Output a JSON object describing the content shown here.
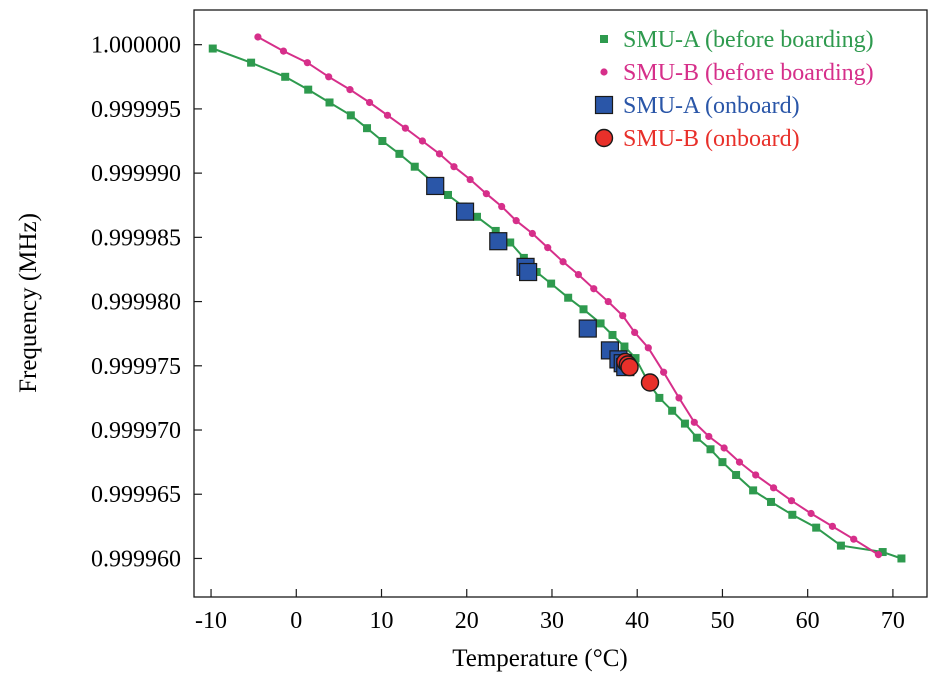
{
  "chart_data": {
    "type": "scatter",
    "xlabel": "Temperature (°C)",
    "ylabel": "Frequency (MHz)",
    "xlim": [
      -12,
      74
    ],
    "ylim": [
      0.999957,
      1.0000027
    ],
    "grid": false,
    "legend_position": "top-right",
    "x_ticks": [
      -10,
      0,
      10,
      20,
      30,
      40,
      50,
      60,
      70
    ],
    "x_tick_labels": [
      "-10",
      "0",
      "10",
      "20",
      "30",
      "40",
      "50",
      "60",
      "70"
    ],
    "y_ticks": [
      0.99996,
      0.999965,
      0.99997,
      0.999975,
      0.99998,
      0.999985,
      0.99999,
      0.999995,
      1.0
    ],
    "y_tick_labels": [
      "0.999960",
      "0.999965",
      "0.999970",
      "0.999975",
      "0.999980",
      "0.999985",
      "0.999990",
      "0.999995",
      "1.000000"
    ],
    "series": [
      {
        "name": "SMU-A (before boarding)",
        "marker": "square-small",
        "color": "#2e9a4e",
        "line": true,
        "x": [
          -9.8,
          -5.3,
          -1.3,
          1.4,
          3.9,
          6.4,
          8.3,
          10.1,
          12.1,
          13.9,
          16.0,
          17.8,
          19.6,
          21.2,
          23.4,
          25.1,
          26.7,
          28.2,
          29.9,
          31.9,
          33.7,
          35.7,
          37.1,
          38.5,
          39.8,
          41.4,
          42.6,
          44.1,
          45.6,
          47.0,
          48.6,
          50.0,
          51.6,
          53.6,
          55.7,
          58.2,
          61.0,
          63.9,
          68.8,
          71.0
        ],
        "y": [
          0.9999997,
          0.9999986,
          0.9999975,
          0.9999965,
          0.9999955,
          0.9999945,
          0.9999935,
          0.9999925,
          0.9999915,
          0.9999905,
          0.9999893,
          0.9999883,
          0.9999874,
          0.9999866,
          0.9999855,
          0.9999846,
          0.9999834,
          0.9999823,
          0.9999814,
          0.9999803,
          0.9999794,
          0.9999783,
          0.9999774,
          0.9999765,
          0.9999756,
          0.9999736,
          0.9999725,
          0.9999715,
          0.9999705,
          0.9999694,
          0.9999685,
          0.9999675,
          0.9999665,
          0.9999653,
          0.9999644,
          0.9999634,
          0.9999624,
          0.999961,
          0.9999605,
          0.99996
        ]
      },
      {
        "name": "SMU-B (before boarding)",
        "marker": "circle-small",
        "color": "#d62f8a",
        "line": true,
        "x": [
          -4.5,
          -1.5,
          1.3,
          3.8,
          6.3,
          8.6,
          10.7,
          12.8,
          14.8,
          16.8,
          18.5,
          20.4,
          22.3,
          24.1,
          25.8,
          27.7,
          29.5,
          31.3,
          33.1,
          34.9,
          36.6,
          38.3,
          39.7,
          41.3,
          43.1,
          44.9,
          46.7,
          48.4,
          50.2,
          52.0,
          53.9,
          56.0,
          58.1,
          60.4,
          62.9,
          65.4,
          68.3
        ],
        "y": [
          1.0000006,
          0.9999995,
          0.9999986,
          0.9999975,
          0.9999965,
          0.9999955,
          0.9999945,
          0.9999935,
          0.9999925,
          0.9999915,
          0.9999905,
          0.9999895,
          0.9999884,
          0.9999874,
          0.9999863,
          0.9999853,
          0.9999842,
          0.9999831,
          0.9999821,
          0.999981,
          0.99998,
          0.9999789,
          0.9999776,
          0.9999764,
          0.9999745,
          0.9999725,
          0.9999706,
          0.9999695,
          0.9999686,
          0.9999675,
          0.9999665,
          0.9999655,
          0.9999645,
          0.9999635,
          0.9999625,
          0.9999615,
          0.9999603
        ]
      },
      {
        "name": "SMU-A (onboard)",
        "marker": "square-large",
        "color": "#2a56a8",
        "line": false,
        "x": [
          16.3,
          19.8,
          23.7,
          26.9,
          27.2,
          34.2,
          36.8,
          37.8,
          38.3,
          38.6
        ],
        "y": [
          0.999989,
          0.999987,
          0.9999847,
          0.9999827,
          0.9999823,
          0.9999779,
          0.9999762,
          0.9999755,
          0.9999752,
          0.9999749
        ]
      },
      {
        "name": "SMU-B (onboard)",
        "marker": "circle-large",
        "color": "#e8302a",
        "line": false,
        "x": [
          38.6,
          38.9,
          39.1,
          41.5
        ],
        "y": [
          0.9999753,
          0.9999751,
          0.9999749,
          0.9999737
        ]
      }
    ]
  }
}
